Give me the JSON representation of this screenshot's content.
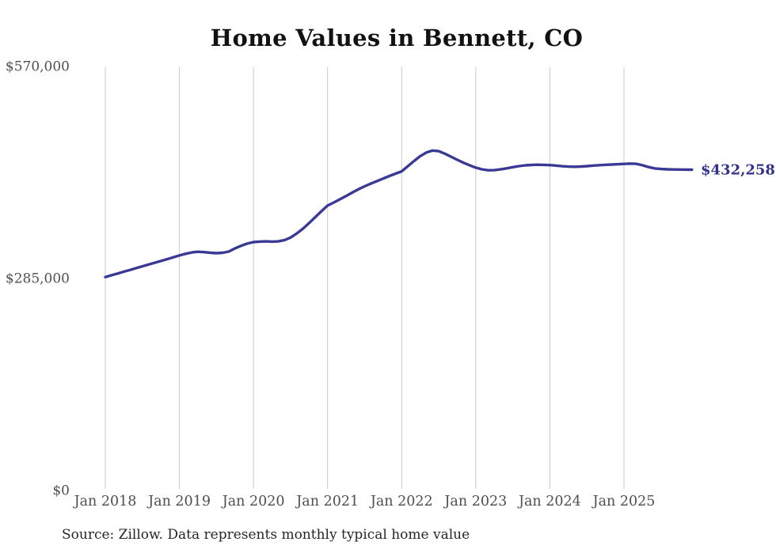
{
  "title": "Home Values in Bennett, CO",
  "end_label": "$432,258",
  "source_note": "Source: Zillow. Data represents monthly typical home value",
  "colors": {
    "line": "#3a3a96",
    "end_label": "#32328c",
    "grid": "#c9c9c9",
    "axis_text": "#4f4f4f",
    "title_text": "#121212",
    "source_text": "#262626",
    "background": "#ffffff"
  },
  "chart_data": {
    "type": "line",
    "title": "Home Values in Bennett, CO",
    "xlabel": "",
    "ylabel": "",
    "x_unit": "month",
    "x_range": [
      "Jan 2018",
      "Dec 2025"
    ],
    "ylim": [
      0,
      570000
    ],
    "y_ticks": [
      570000,
      285000,
      0
    ],
    "y_tick_labels": [
      "$570,000",
      "$285,000",
      "$0"
    ],
    "x_tick_indices": [
      0,
      12,
      24,
      36,
      48,
      60,
      72,
      84
    ],
    "x_tick_labels": [
      "Jan 2018",
      "Jan 2019",
      "Jan 2020",
      "Jan 2021",
      "Jan 2022",
      "Jan 2023",
      "Jan 2024",
      "Jan 2025"
    ],
    "grid": "vertical",
    "legend": "none",
    "last_value": 432258,
    "series": [
      {
        "name": "Typical home value",
        "values": [
          288000,
          290400,
          292800,
          295200,
          297600,
          300000,
          302400,
          304800,
          307200,
          309600,
          312000,
          314500,
          317000,
          319200,
          321000,
          322000,
          321500,
          320600,
          320100,
          320600,
          322200,
          326500,
          330000,
          333000,
          335000,
          335600,
          335900,
          335600,
          335900,
          337500,
          341000,
          346500,
          353000,
          360500,
          368500,
          376500,
          384000,
          388200,
          392500,
          397000,
          401500,
          406000,
          410000,
          413600,
          417000,
          420400,
          423800,
          427000,
          430000,
          437000,
          444000,
          450500,
          455500,
          458000,
          457200,
          453800,
          449700,
          445600,
          441600,
          438200,
          435000,
          432800,
          431500,
          431700,
          432700,
          434100,
          435700,
          437100,
          438100,
          438700,
          439000,
          438800,
          438500,
          437800,
          437000,
          436400,
          436200,
          436500,
          437100,
          437800,
          438400,
          438900,
          439200,
          439600,
          440000,
          440500,
          440200,
          438200,
          435800,
          434000,
          433200,
          432800,
          432600,
          432500,
          432400,
          432258
        ]
      }
    ]
  }
}
